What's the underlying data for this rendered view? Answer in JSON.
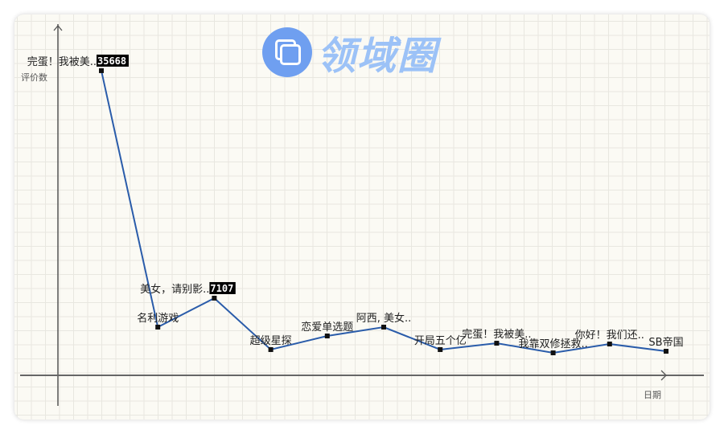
{
  "logo": {
    "text": "领域圈"
  },
  "chart_data": {
    "type": "line",
    "title": "",
    "xlabel": "日期",
    "ylabel": "评价数",
    "ylim": [
      0,
      40000
    ],
    "grid": true,
    "color": "#2a5caa",
    "categories": [
      "完蛋！我被美..",
      "名利游戏",
      "美女，请别影..",
      "超级星探",
      "恋爱单选题",
      "阿西, 美女..",
      "开局五个亿",
      "完蛋！我被美..",
      "我靠双修拯救..",
      "你好！我们还..",
      "SB帝国"
    ],
    "values": [
      35668,
      3470,
      7107,
      650,
      2360,
      3470,
      650,
      1450,
      240,
      1350,
      440
    ],
    "data_labels": [
      "35668",
      "",
      "7107",
      "",
      "",
      "",
      "",
      "",
      "",
      "",
      ""
    ]
  }
}
